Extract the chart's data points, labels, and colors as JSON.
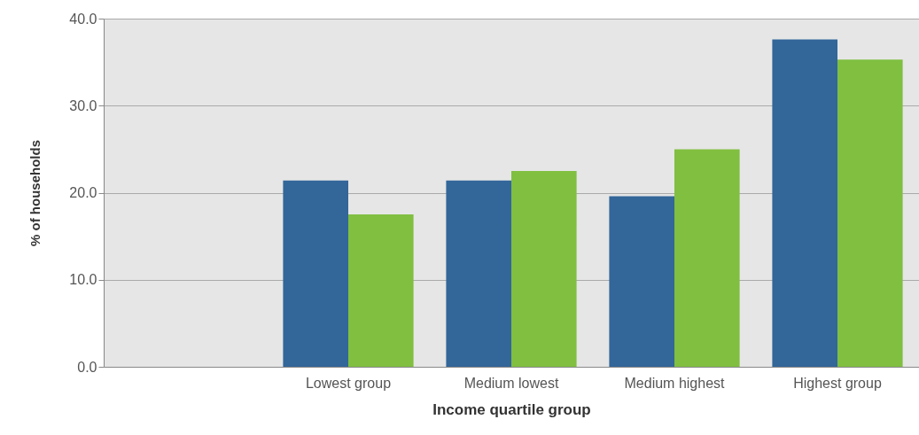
{
  "chart_data": {
    "type": "bar",
    "xlabel": "Income quartile group",
    "ylabel": "% of households",
    "categories": [
      null,
      "Lowest group",
      "Medium lowest",
      "Medium highest",
      "Highest group"
    ],
    "series": [
      {
        "color": "#336699",
        "values": [
          null,
          21.4,
          21.4,
          19.6,
          37.6
        ]
      },
      {
        "color": "#80bf40",
        "values": [
          null,
          17.5,
          22.5,
          25.0,
          35.3
        ]
      }
    ],
    "ylim": [
      0,
      40
    ],
    "yticks": [
      {
        "value": 0,
        "label": "0.0"
      },
      {
        "value": 10,
        "label": "10.0"
      },
      {
        "value": 20,
        "label": "20.0"
      },
      {
        "value": 30,
        "label": "30.0"
      },
      {
        "value": 40,
        "label": "40.0"
      }
    ],
    "grid": "y",
    "legend": false
  }
}
